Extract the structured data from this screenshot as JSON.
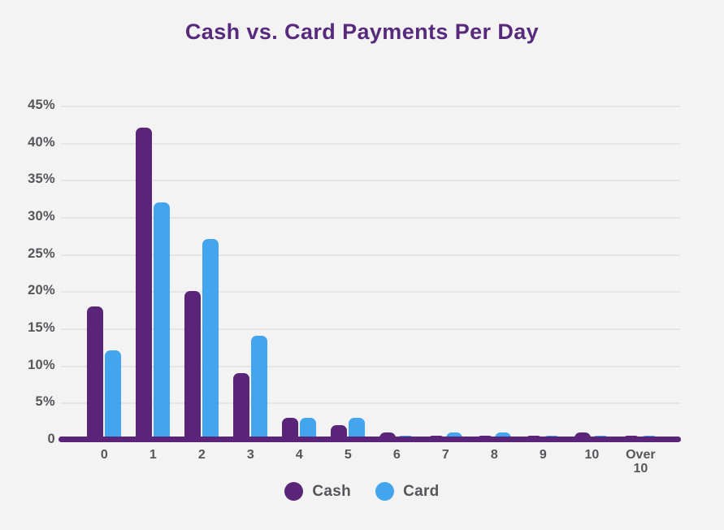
{
  "title": "Cash vs. Card Payments Per Day",
  "colors": {
    "background": "#f3f3f3",
    "title": "#582a7c",
    "cash": "#5a2478",
    "card": "#42a5ee",
    "axis_line": "#5a2478",
    "gridline": "#e5e5e6",
    "labels": "#55565a"
  },
  "legend": [
    {
      "name": "Cash",
      "color": "#5a2478"
    },
    {
      "name": "Card",
      "color": "#42a5ee"
    }
  ],
  "chart_data": {
    "type": "bar",
    "title": "Cash vs. Card Payments Per Day",
    "categories": [
      "0",
      "1",
      "2",
      "3",
      "4",
      "5",
      "6",
      "7",
      "8",
      "9",
      "10",
      "Over 10"
    ],
    "series": [
      {
        "name": "Cash",
        "color": "#5a2478",
        "values": [
          18,
          42,
          20,
          9,
          3,
          2,
          1,
          0.5,
          0.5,
          0.5,
          1,
          0.5
        ]
      },
      {
        "name": "Card",
        "color": "#42a5ee",
        "values": [
          12,
          32,
          27,
          14,
          3,
          3,
          0.5,
          1,
          1,
          0.5,
          0.5,
          0.5
        ]
      }
    ],
    "xlabel": "",
    "ylabel": "",
    "ylim": [
      0,
      45
    ],
    "ytick_labels": [
      "45%",
      "40%",
      "35%",
      "30%",
      "25%",
      "20%",
      "15%",
      "10%",
      "5%",
      "0"
    ],
    "ytick_unit": "percent",
    "grid": true,
    "legend_position": "bottom"
  }
}
